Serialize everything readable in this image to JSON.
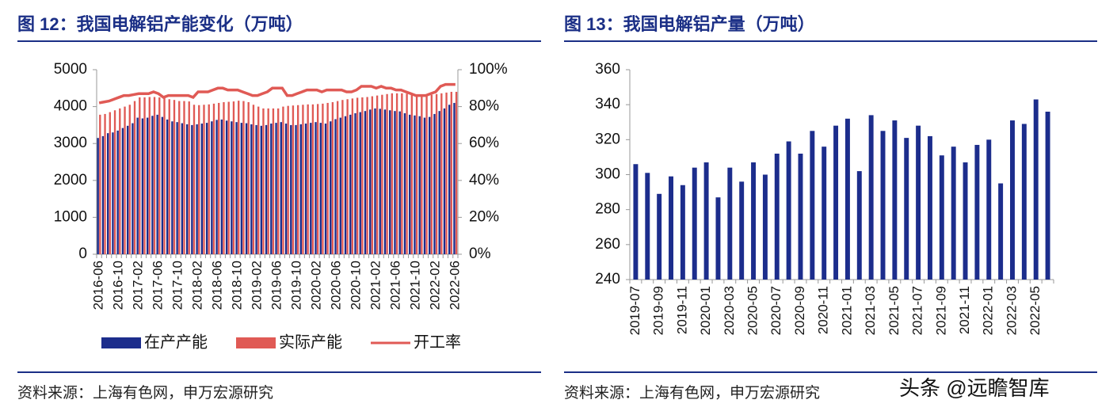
{
  "chart_data": [
    {
      "type": "bar",
      "title": "图 12：我国电解铝产能变化（万吨）",
      "source": "资料来源：上海有色网，申万宏源研究",
      "categories": [
        "2016-06",
        null,
        null,
        null,
        "2016-10",
        null,
        null,
        null,
        "2017-02",
        null,
        null,
        null,
        "2017-06",
        null,
        null,
        null,
        "2017-10",
        null,
        null,
        null,
        "2018-02",
        null,
        null,
        null,
        "2018-06",
        null,
        null,
        null,
        "2018-10",
        null,
        null,
        null,
        "2019-02",
        null,
        null,
        null,
        "2019-06",
        null,
        null,
        null,
        "2019-10",
        null,
        null,
        null,
        "2020-02",
        null,
        null,
        null,
        "2020-06",
        null,
        null,
        null,
        "2020-10",
        null,
        null,
        null,
        "2021-02",
        null,
        null,
        null,
        "2021-06",
        null,
        null,
        null,
        "2021-10",
        null,
        null,
        null,
        "2022-02",
        null,
        null,
        null,
        "2022-06"
      ],
      "series": [
        {
          "name": "在产产能",
          "color": "#1c2d8c",
          "values": [
            3150,
            3200,
            3280,
            3300,
            3350,
            3420,
            3480,
            3550,
            3700,
            3680,
            3700,
            3750,
            3780,
            3720,
            3650,
            3600,
            3580,
            3550,
            3520,
            3500,
            3520,
            3540,
            3560,
            3600,
            3640,
            3650,
            3620,
            3600,
            3580,
            3560,
            3550,
            3520,
            3500,
            3480,
            3500,
            3540,
            3560,
            3580,
            3540,
            3500,
            3500,
            3520,
            3540,
            3560,
            3580,
            3560,
            3540,
            3600,
            3660,
            3700,
            3740,
            3780,
            3820,
            3850,
            3880,
            3920,
            3950,
            3940,
            3920,
            3900,
            3880,
            3870,
            3820,
            3780,
            3760,
            3740,
            3700,
            3720,
            3800,
            3880,
            3950,
            4050,
            4100
          ]
        },
        {
          "name": "实际产能",
          "color": "#e05a55",
          "values": [
            3780,
            3800,
            3850,
            3900,
            3950,
            4000,
            4050,
            4150,
            4250,
            4250,
            4260,
            4260,
            4250,
            4240,
            4200,
            4180,
            4150,
            4150,
            4140,
            4050,
            4040,
            4050,
            4060,
            4080,
            4100,
            4120,
            4130,
            4140,
            4160,
            4150,
            4120,
            4050,
            4000,
            3950,
            3950,
            3950,
            3950,
            4000,
            4020,
            4030,
            4040,
            4050,
            4060,
            4060,
            4070,
            4080,
            4100,
            4120,
            4150,
            4180,
            4200,
            4220,
            4240,
            4250,
            4260,
            4280,
            4300,
            4320,
            4340,
            4360,
            4360,
            4360,
            4350,
            4340,
            4330,
            4320,
            4300,
            4320,
            4340,
            4360,
            4380,
            4400,
            4400
          ]
        },
        {
          "name": "开工率",
          "color": "#e05a55",
          "type": "line",
          "axis": "y2",
          "values": [
            82,
            82.5,
            83,
            84,
            85,
            86,
            86,
            86.5,
            87,
            87,
            87,
            88,
            87,
            85,
            86,
            86,
            86,
            86,
            86,
            85,
            88,
            88,
            88,
            89,
            90,
            90,
            89,
            89,
            89,
            88,
            87,
            86,
            86,
            87,
            88,
            90,
            90,
            90,
            86,
            86,
            87,
            88,
            89,
            89,
            89,
            88,
            89,
            89,
            89,
            89,
            88,
            88,
            89,
            91,
            91,
            91,
            90,
            91,
            90,
            90,
            89,
            89,
            88,
            87,
            86,
            86,
            86,
            87,
            88,
            91,
            92,
            92,
            92
          ]
        }
      ],
      "ylim": [
        0,
        5000
      ],
      "yticks": [
        0,
        1000,
        2000,
        3000,
        4000,
        5000
      ],
      "y2lim": [
        0,
        100
      ],
      "y2ticks": [
        {
          "value": 0,
          "label": "0%"
        },
        {
          "value": 20,
          "label": "20%"
        },
        {
          "value": 40,
          "label": "40%"
        },
        {
          "value": 60,
          "label": "60%"
        },
        {
          "value": 80,
          "label": "80%"
        },
        {
          "value": 100,
          "label": "100%"
        }
      ],
      "legend": "bottom"
    },
    {
      "type": "bar",
      "title": "图 13：我国电解铝产量（万吨）",
      "source": "资料来源：上海有色网，申万宏源研究",
      "categories": [
        "2019-07",
        null,
        "2019-09",
        null,
        "2019-11",
        null,
        "2020-01",
        null,
        "2020-03",
        null,
        "2020-05",
        null,
        "2020-07",
        null,
        "2020-09",
        null,
        "2020-11",
        null,
        "2021-01",
        null,
        "2021-03",
        null,
        "2021-05",
        null,
        "2021-07",
        null,
        "2021-09",
        null,
        "2021-11",
        null,
        "2022-01",
        null,
        "2022-03",
        null,
        "2022-05",
        null
      ],
      "values": [
        306,
        301,
        289,
        299,
        294,
        304,
        307,
        287,
        304,
        296,
        307,
        300,
        312,
        319,
        312,
        325,
        316,
        328,
        332,
        302,
        334,
        325,
        331,
        321,
        328,
        322,
        311,
        316,
        307,
        317,
        320,
        295,
        331,
        329,
        343,
        336
      ],
      "color": "#1c2d8c",
      "ylim": [
        240,
        360
      ],
      "yticks": [
        240,
        260,
        280,
        300,
        320,
        340,
        360
      ]
    }
  ],
  "watermark": "头条 @远瞻智库"
}
